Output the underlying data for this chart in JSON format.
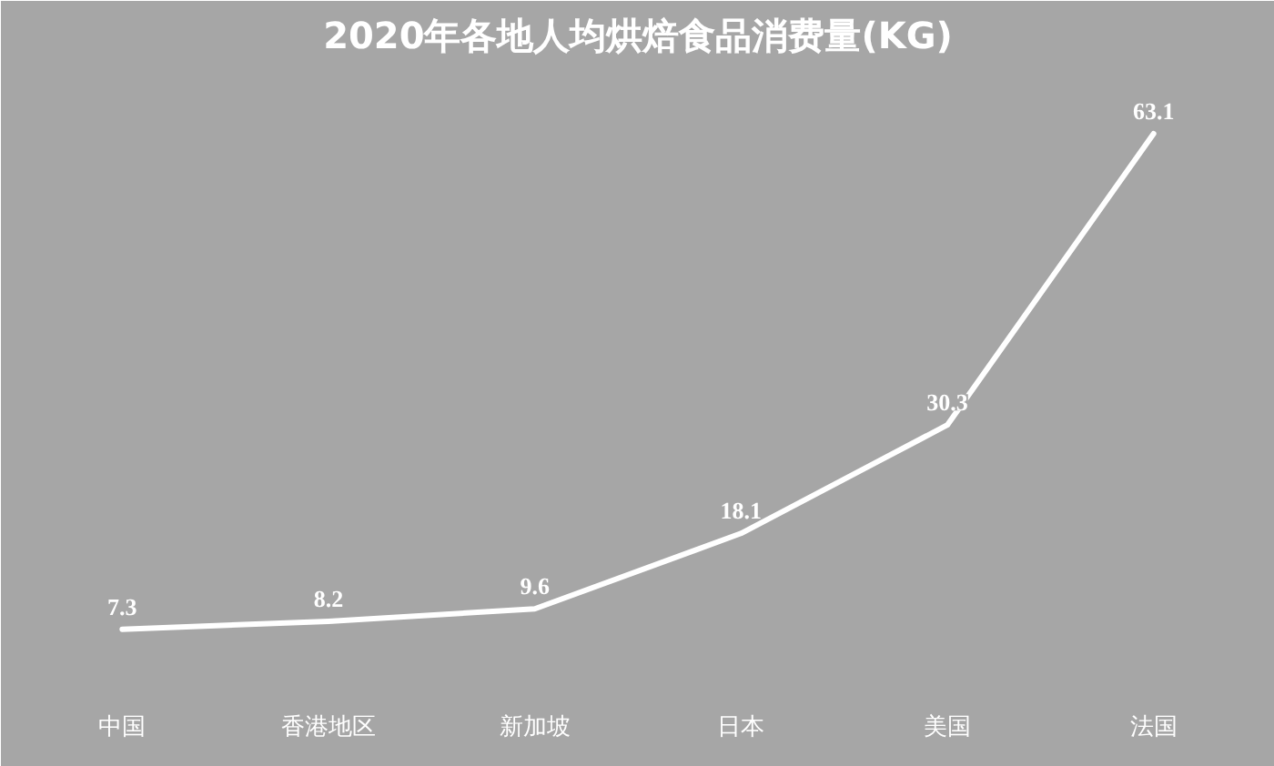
{
  "chart_data": {
    "type": "line",
    "title": "2020年各地人均烘焙食品消费量(KG)",
    "categories": [
      "中国",
      "香港地区",
      "新加坡",
      "日本",
      "美国",
      "法国"
    ],
    "series": [
      {
        "color": "#ffffff",
        "values": [
          7.3,
          8.2,
          9.6,
          18.1,
          30.3,
          63.1
        ]
      }
    ],
    "data_labels": true,
    "marker": "none",
    "line_style": "solid"
  }
}
